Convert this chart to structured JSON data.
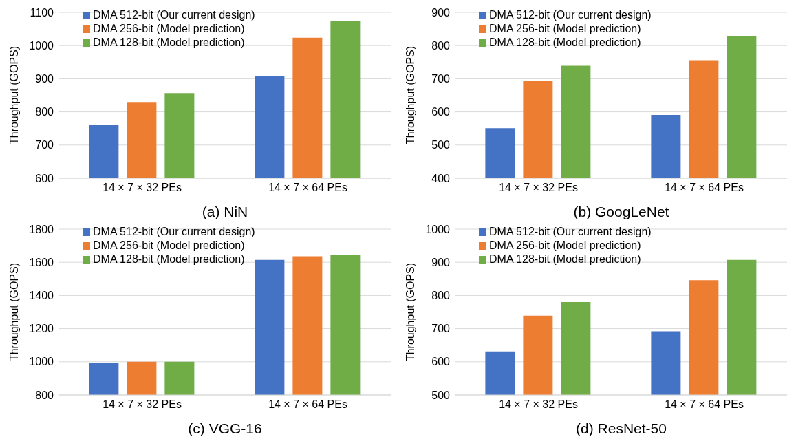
{
  "chart_data": [
    {
      "type": "bar",
      "xlabel": "(a) NiN",
      "ylabel": "Throughput (GOPS)",
      "categories": [
        "14 × 7 × 32 PEs",
        "14 × 7 × 64 PEs"
      ],
      "ylim": [
        600,
        1100
      ],
      "yticks": [
        600,
        700,
        800,
        900,
        1000,
        1100
      ],
      "grid": "y",
      "legend": "top left",
      "series": [
        {
          "name": "DMA 512-bit (Our current design)",
          "color": "#4472c4",
          "values": [
            761,
            908
          ]
        },
        {
          "name": "DMA 256-bit (Model prediction)",
          "color": "#ed7d31",
          "values": [
            830,
            1024
          ]
        },
        {
          "name": "DMA 128-bit (Model prediction)",
          "color": "#70ad47",
          "values": [
            857,
            1073
          ]
        }
      ]
    },
    {
      "type": "bar",
      "xlabel": "(b) GoogLeNet",
      "ylabel": "Throughput (GOPS)",
      "categories": [
        "14 × 7 × 32 PEs",
        "14 × 7 × 64 PEs"
      ],
      "ylim": [
        400,
        900
      ],
      "yticks": [
        400,
        500,
        600,
        700,
        800,
        900
      ],
      "grid": "y",
      "legend": "top left",
      "series": [
        {
          "name": "DMA 512-bit (Our current design)",
          "color": "#4472c4",
          "values": [
            551,
            591
          ]
        },
        {
          "name": "DMA 256-bit (Model prediction)",
          "color": "#ed7d31",
          "values": [
            693,
            756
          ]
        },
        {
          "name": "DMA 128-bit (Model prediction)",
          "color": "#70ad47",
          "values": [
            739,
            828
          ]
        }
      ]
    },
    {
      "type": "bar",
      "xlabel": "(c) VGG-16",
      "ylabel": "Throughput (GOPS)",
      "categories": [
        "14 × 7 × 32 PEs",
        "14 × 7 × 64 PEs"
      ],
      "ylim": [
        800,
        1800
      ],
      "yticks": [
        800,
        1000,
        1200,
        1400,
        1600,
        1800
      ],
      "grid": "y",
      "legend": "top left",
      "series": [
        {
          "name": "DMA 512-bit (Our current design)",
          "color": "#4472c4",
          "values": [
            995,
            1614
          ]
        },
        {
          "name": "DMA 256-bit (Model prediction)",
          "color": "#ed7d31",
          "values": [
            1000,
            1636
          ]
        },
        {
          "name": "DMA 128-bit (Model prediction)",
          "color": "#70ad47",
          "values": [
            1000,
            1642
          ]
        }
      ]
    },
    {
      "type": "bar",
      "xlabel": "(d) ResNet-50",
      "ylabel": "Throughput (GOPS)",
      "categories": [
        "14 × 7 × 32 PEs",
        "14 × 7 × 64 PEs"
      ],
      "ylim": [
        500,
        1000
      ],
      "yticks": [
        500,
        600,
        700,
        800,
        900,
        1000
      ],
      "grid": "y",
      "legend": "top left",
      "series": [
        {
          "name": "DMA 512-bit (Our current design)",
          "color": "#4472c4",
          "values": [
            631,
            692
          ]
        },
        {
          "name": "DMA 256-bit (Model prediction)",
          "color": "#ed7d31",
          "values": [
            739,
            846
          ]
        },
        {
          "name": "DMA 128-bit (Model prediction)",
          "color": "#70ad47",
          "values": [
            780,
            907
          ]
        }
      ]
    }
  ]
}
